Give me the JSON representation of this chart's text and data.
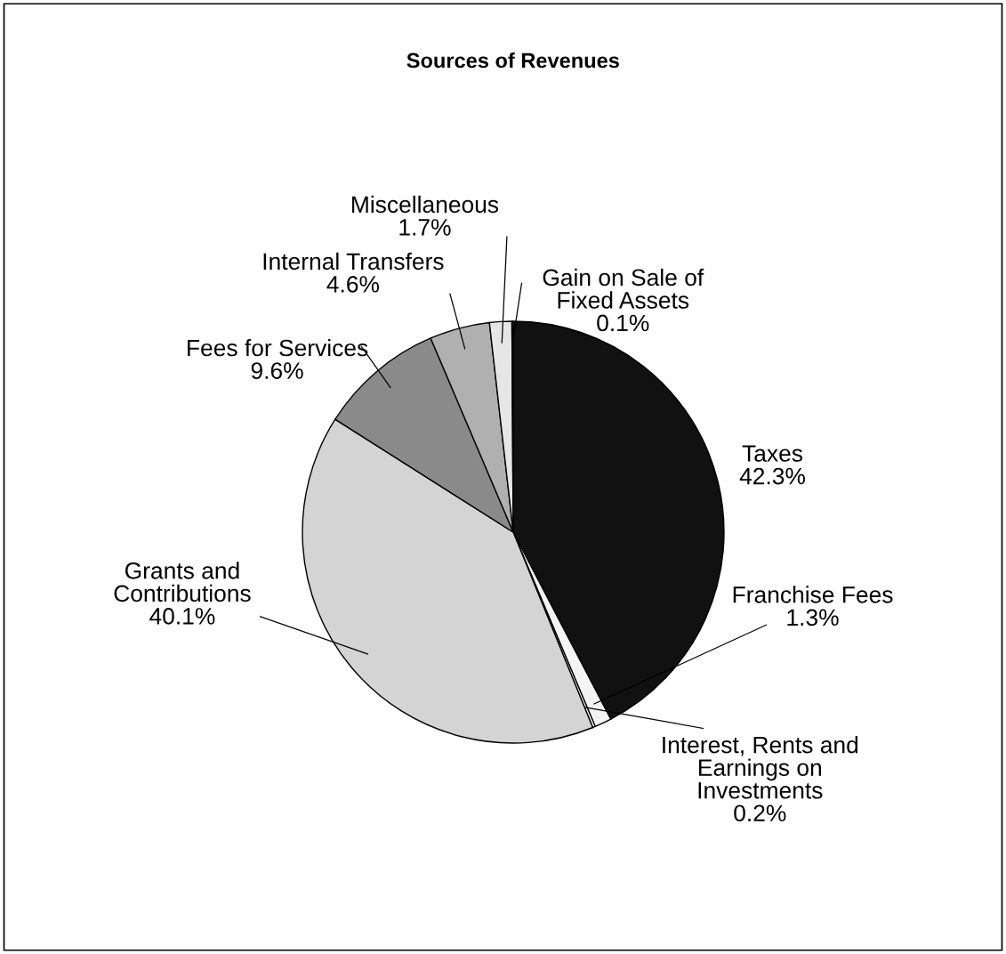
{
  "chart_data": {
    "type": "pie",
    "title": "Sources of Revenues",
    "categories": [
      "Taxes",
      "Franchise Fees",
      "Interest, Rents and\nEarnings on\nInvestments",
      "Grants and\nContributions",
      "Fees for Services",
      "Internal Transfers",
      "Miscellaneous",
      "Gain on Sale of\nFixed Assets"
    ],
    "values": [
      42.3,
      1.3,
      0.2,
      40.1,
      9.6,
      4.6,
      1.7,
      0.1
    ],
    "value_labels": [
      "42.3%",
      "1.3%",
      "0.2%",
      "40.1%",
      "9.6%",
      "4.6%",
      "1.7%",
      "0.1%"
    ],
    "colors": [
      "#111111",
      "#f4f4f4",
      "#ffffff",
      "#d4d4d4",
      "#8a8a8a",
      "#b0b0b0",
      "#e6e6e6",
      "#ffffff"
    ],
    "legend": false
  }
}
